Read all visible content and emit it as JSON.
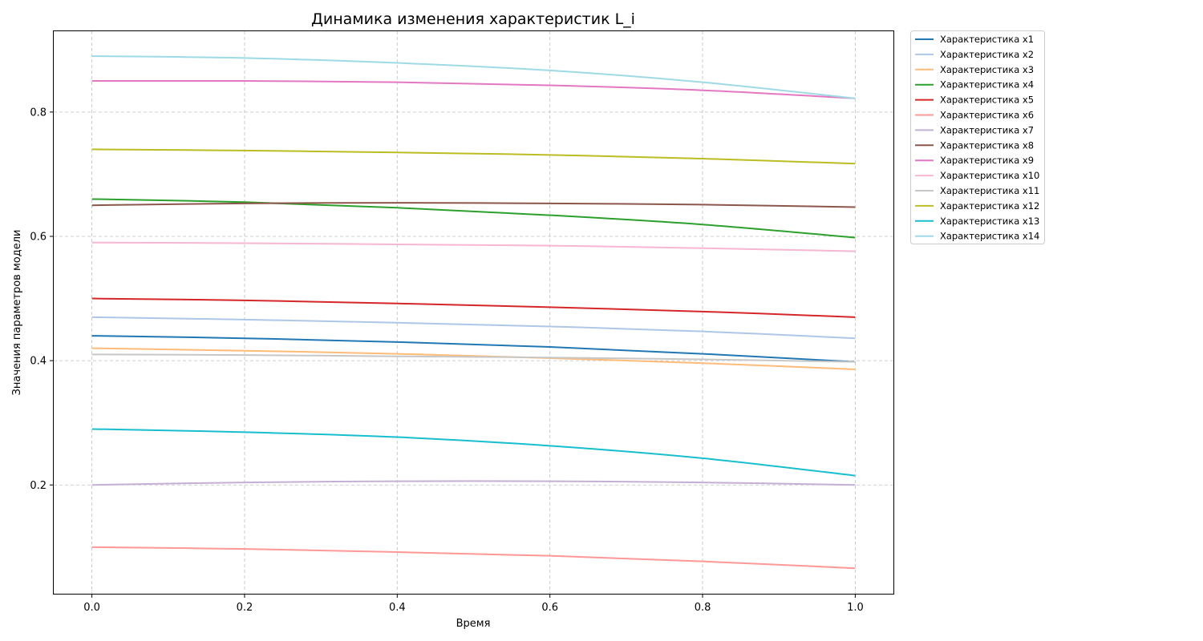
{
  "chart_data": {
    "type": "line",
    "title": "Динамика изменения характеристик L_i",
    "xlabel": "Время",
    "ylabel": "Значения параметров модели",
    "xlim": [
      -0.05,
      1.05
    ],
    "ylim": [
      0.025,
      0.93
    ],
    "xticks": [
      0.0,
      0.2,
      0.4,
      0.6,
      0.8,
      1.0
    ],
    "xtick_labels": [
      "0.0",
      "0.2",
      "0.4",
      "0.6",
      "0.8",
      "1.0"
    ],
    "yticks": [
      0.2,
      0.4,
      0.6,
      0.8
    ],
    "ytick_labels": [
      "0.2",
      "0.4",
      "0.6",
      "0.8"
    ],
    "grid": true,
    "legend_position": "outside-upper-right",
    "x": [
      0.0,
      0.2,
      0.4,
      0.6,
      0.8,
      1.0
    ],
    "series": [
      {
        "name": "Характеристика x1",
        "color": "#1f77b4",
        "values": [
          0.44,
          0.436,
          0.43,
          0.422,
          0.411,
          0.398
        ]
      },
      {
        "name": "Характеристика x2",
        "color": "#aec7e8",
        "values": [
          0.47,
          0.466,
          0.461,
          0.455,
          0.447,
          0.436
        ]
      },
      {
        "name": "Характеристика x3",
        "color": "#ffbb78",
        "values": [
          0.42,
          0.416,
          0.411,
          0.404,
          0.396,
          0.386
        ]
      },
      {
        "name": "Характеристика x4",
        "color": "#2ca02c",
        "values": [
          0.66,
          0.655,
          0.646,
          0.634,
          0.619,
          0.598
        ]
      },
      {
        "name": "Характеристика x5",
        "color": "#d62728",
        "values": [
          0.5,
          0.497,
          0.492,
          0.486,
          0.479,
          0.47
        ]
      },
      {
        "name": "Характеристика x6",
        "color": "#ff9896",
        "values": [
          0.1,
          0.097,
          0.092,
          0.086,
          0.077,
          0.066
        ]
      },
      {
        "name": "Характеристика x7",
        "color": "#c5b0d5",
        "values": [
          0.2,
          0.204,
          0.206,
          0.206,
          0.204,
          0.2
        ]
      },
      {
        "name": "Характеристика x8",
        "color": "#8c564b",
        "values": [
          0.65,
          0.653,
          0.654,
          0.653,
          0.651,
          0.647
        ]
      },
      {
        "name": "Характеристика x9",
        "color": "#e377c2",
        "values": [
          0.85,
          0.85,
          0.848,
          0.843,
          0.835,
          0.822
        ]
      },
      {
        "name": "Характеристика x10",
        "color": "#f7b6d2",
        "values": [
          0.59,
          0.589,
          0.587,
          0.585,
          0.581,
          0.576
        ]
      },
      {
        "name": "Характеристика x11",
        "color": "#c7c7c7",
        "values": [
          0.41,
          0.409,
          0.407,
          0.405,
          0.402,
          0.398
        ]
      },
      {
        "name": "Характеристика x12",
        "color": "#bcbd22",
        "values": [
          0.74,
          0.738,
          0.735,
          0.731,
          0.725,
          0.717
        ]
      },
      {
        "name": "Характеристика x13",
        "color": "#17becf",
        "values": [
          0.29,
          0.285,
          0.277,
          0.263,
          0.243,
          0.215
        ]
      },
      {
        "name": "Характеристика x14",
        "color": "#9edae5",
        "values": [
          0.89,
          0.887,
          0.879,
          0.867,
          0.848,
          0.822
        ]
      }
    ]
  }
}
